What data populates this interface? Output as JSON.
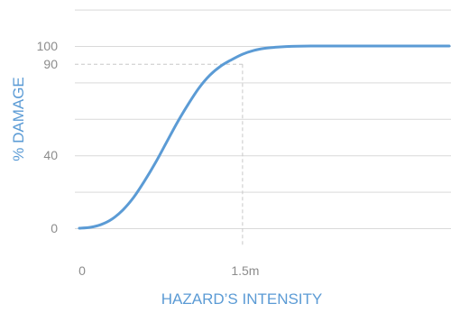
{
  "chart_data": {
    "type": "line",
    "xlabel": "HAZARD’S INTENSITY",
    "ylabel": "% DAMAGE",
    "x_ticks": [
      {
        "value": 0,
        "label": "0"
      },
      {
        "value": 1.5,
        "label": "1.5m"
      }
    ],
    "y_ticks": [
      {
        "value": 0,
        "label": "0"
      },
      {
        "value": 40,
        "label": "40"
      },
      {
        "value": 90,
        "label": "90"
      },
      {
        "value": 100,
        "label": "100"
      }
    ],
    "xlim": [
      0,
      3.4
    ],
    "ylim": [
      0,
      100
    ],
    "gridlines_y": [
      0,
      20,
      40,
      60,
      80,
      100,
      120
    ],
    "grid": true,
    "reference_point": {
      "x": 1.5,
      "y": 90
    },
    "series": [
      {
        "color": "#5b9bd5",
        "x": [
          0,
          0.1,
          0.2,
          0.3,
          0.4,
          0.5,
          0.6,
          0.7,
          0.8,
          0.9,
          1.0,
          1.1,
          1.2,
          1.3,
          1.4,
          1.5,
          1.6,
          1.7,
          1.8,
          1.9,
          2.0,
          2.2,
          2.4,
          2.6,
          2.8,
          3.0,
          3.2,
          3.4
        ],
        "y": [
          0,
          0.5,
          2,
          5,
          10,
          17,
          26,
          36,
          47,
          58,
          68,
          77,
          84,
          89,
          92.5,
          95.5,
          97.5,
          98.7,
          99.3,
          99.7,
          99.9,
          100,
          100,
          100,
          100,
          100,
          100,
          100
        ]
      }
    ]
  }
}
